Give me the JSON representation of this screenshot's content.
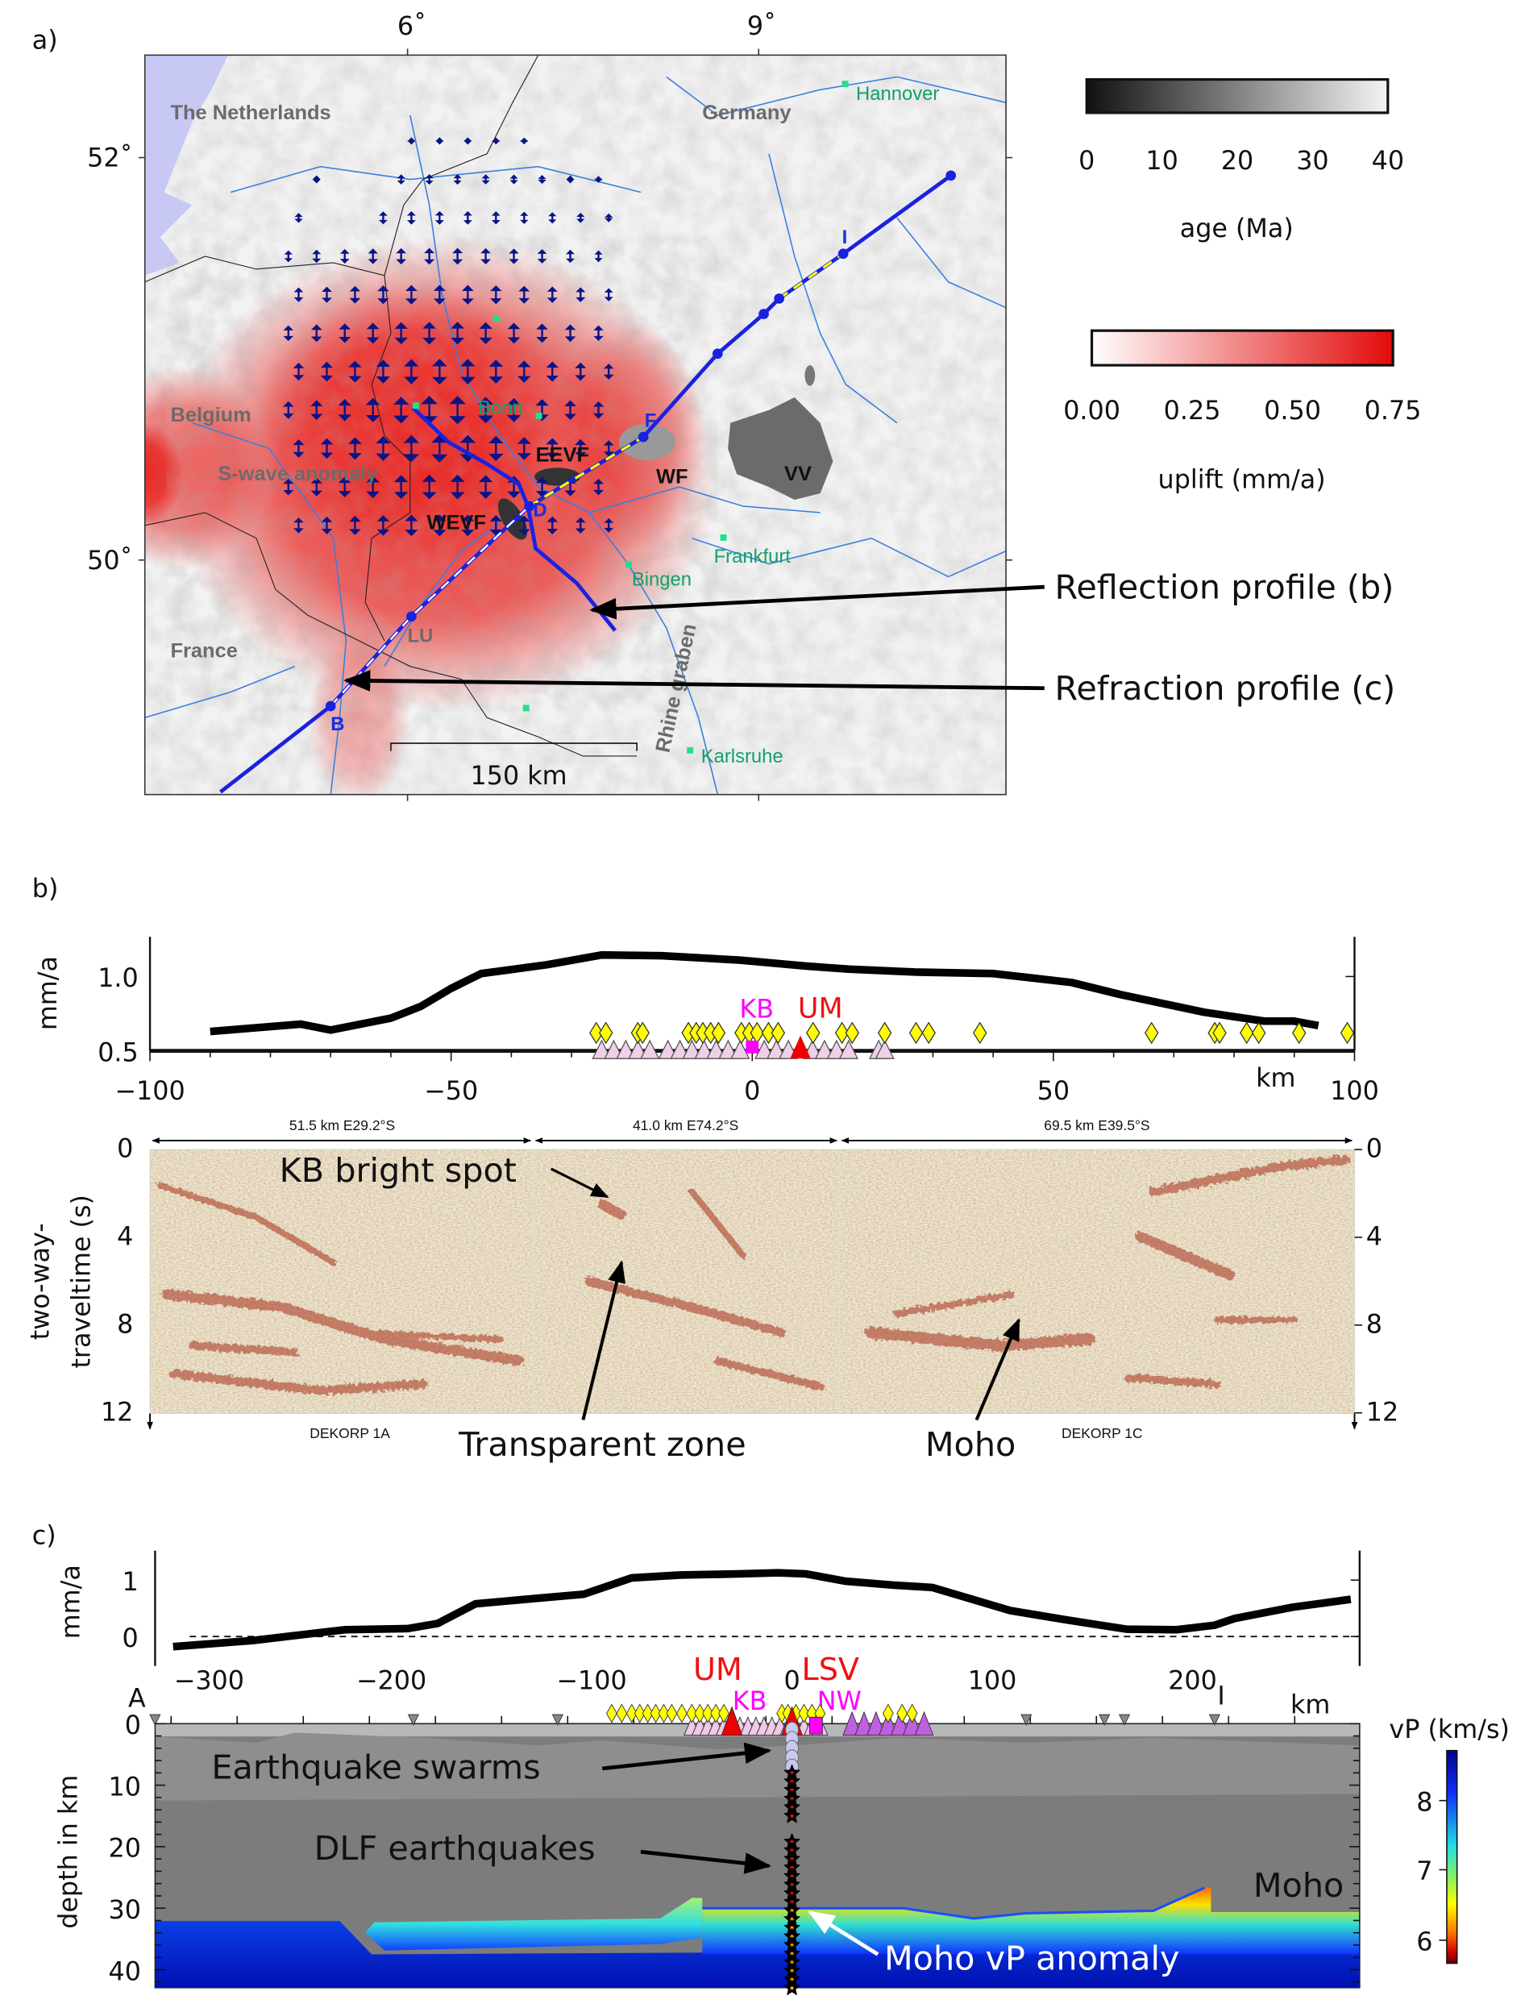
{
  "panel_labels": {
    "a": "a)",
    "b": "b)",
    "c": "c)"
  },
  "map": {
    "lon_ticks": [
      "6˚",
      "9˚"
    ],
    "lat_ticks": [
      "52˚",
      "50˚"
    ],
    "countries": [
      "The Netherlands",
      "Germany",
      "Belgium",
      "France"
    ],
    "cities": [
      "Hannover",
      "Bonn",
      "Frankfurt",
      "Bingen",
      "Karlsruhe"
    ],
    "features": {
      "swave": "S-wave anomaly",
      "eevf": "EEVF",
      "wevf": "WEVF",
      "wf": "WF",
      "vv": "VV",
      "rhine": "Rhine graben"
    },
    "profile_points": {
      "b": "B",
      "lu": "LU",
      "d": "D",
      "f": "F",
      "i": "I"
    },
    "scale_bar": "150 km",
    "colors": {
      "uplift": "#e8201c",
      "profile": "#1a22e0",
      "arrows": "#0a1487",
      "water": "#c8c8f5",
      "rivers": "#3a7fe0",
      "cities": "#14a06a"
    }
  },
  "colorbars": {
    "age": {
      "ticks": [
        "0",
        "10",
        "20",
        "30",
        "40"
      ],
      "label": "age (Ma)"
    },
    "uplift": {
      "ticks": [
        "0.00",
        "0.25",
        "0.50",
        "0.75"
      ],
      "label": "uplift (mm/a)"
    }
  },
  "annotations": {
    "reflection": "Reflection profile (b)",
    "refraction": "Refraction profile (c)"
  },
  "chart_data": [
    {
      "type": "line",
      "panel": "b",
      "ylabel": "mm/a",
      "xlabel": "km",
      "xlim": [
        -100,
        100
      ],
      "ylim": [
        0.5,
        1.25
      ],
      "x_ticks": [
        "−100",
        "−50",
        "0",
        "50",
        "100"
      ],
      "y_ticks": [
        "1.0",
        "0.5"
      ],
      "x": [
        -90,
        -75,
        -70,
        -60,
        -55,
        -50,
        -45,
        -34,
        -25,
        -15,
        -2,
        9,
        16,
        27,
        40,
        53,
        61,
        75,
        85,
        90,
        94
      ],
      "y": [
        0.63,
        0.68,
        0.64,
        0.72,
        0.8,
        0.92,
        1.02,
        1.08,
        1.145,
        1.14,
        1.11,
        1.07,
        1.05,
        1.03,
        1.02,
        0.96,
        0.88,
        0.76,
        0.7,
        0.7,
        0.67
      ],
      "diamonds_km": [
        -25.9,
        -24.3,
        -19,
        -18.2,
        -10.6,
        -9.3,
        -8.2,
        -6.9,
        -5.6,
        -1.8,
        -0.5,
        0.8,
        2.7,
        4.3,
        10.1,
        14.9,
        16.6,
        22,
        27.2,
        29.3,
        37.8,
        66.3,
        76.8,
        77.6,
        82.1,
        84.1,
        90.8,
        98.8
      ],
      "triangles_km": [
        -25,
        -23,
        -21,
        -19,
        -17,
        -14,
        -12,
        -10,
        -8,
        -6,
        -4,
        -2,
        2,
        4,
        6,
        10,
        12,
        14,
        16,
        21,
        22
      ],
      "markers": [
        {
          "label": "KB",
          "km": 0,
          "color": "#ff00ff"
        },
        {
          "label": "UM",
          "km": 8,
          "color": "#ee1111"
        }
      ]
    },
    {
      "type": "line",
      "panel": "c",
      "ylabel": "mm/a",
      "xlabel": "km",
      "xlim": [
        -310,
        285
      ],
      "ylim": [
        -0.5,
        1.5
      ],
      "x_ticks": [
        "−300",
        "−200",
        "−100",
        "0",
        "100",
        "200"
      ],
      "y_ticks": [
        "1",
        "0"
      ],
      "x": [
        -309,
        -269,
        -250,
        -223,
        -192,
        -177,
        -158,
        -114,
        -104,
        -80,
        -56,
        -27,
        -7,
        7,
        27,
        51,
        70,
        109,
        138,
        167,
        192,
        211,
        221,
        250,
        279
      ],
      "y": [
        -0.18,
        -0.07,
        0.01,
        0.12,
        0.14,
        0.23,
        0.58,
        0.72,
        0.75,
        1.04,
        1.09,
        1.11,
        1.13,
        1.11,
        0.98,
        0.91,
        0.87,
        0.46,
        0.29,
        0.13,
        0.12,
        0.2,
        0.32,
        0.52,
        0.66
      ],
      "stations_km": [
        -318,
        -189,
        -117,
        117,
        156,
        166,
        211
      ],
      "markers": [
        {
          "label": "UM",
          "km": -30,
          "color": "#ee1111"
        },
        {
          "label": "LSV",
          "km": 0,
          "color": "#ee1111"
        },
        {
          "label": "KB",
          "km": -20,
          "color": "#ff00ff"
        },
        {
          "label": "NW",
          "km": 12,
          "color": "#ff00ff"
        }
      ]
    }
  ],
  "panel_b": {
    "segments": [
      "51.5 km E29.2°S",
      "41.0 km E74.2°S",
      "69.5 km E39.5°S"
    ],
    "twt_ticks": [
      "0",
      "4",
      "8",
      "12"
    ],
    "ylabel_line1": "two-way-",
    "ylabel_line2": "traveltime (s)",
    "lines": [
      "DEKORP 1A",
      "DEKORP 1C"
    ],
    "annotations": {
      "kb": "KB bright spot",
      "transparent": "Transparent zone",
      "moho": "Moho"
    }
  },
  "panel_c": {
    "start_label": "A",
    "end_label": "I",
    "depth_ticks": [
      "0",
      "10",
      "20",
      "30",
      "40"
    ],
    "ylabel": "depth in km",
    "vp_label": "vP (km/s)",
    "vp_ticks": [
      "8",
      "7",
      "6"
    ],
    "annotations": {
      "swarms": "Earthquake swarms",
      "dlf": "DLF earthquakes",
      "moho": "Moho",
      "moho_anomaly": "Moho vP anomaly"
    }
  }
}
